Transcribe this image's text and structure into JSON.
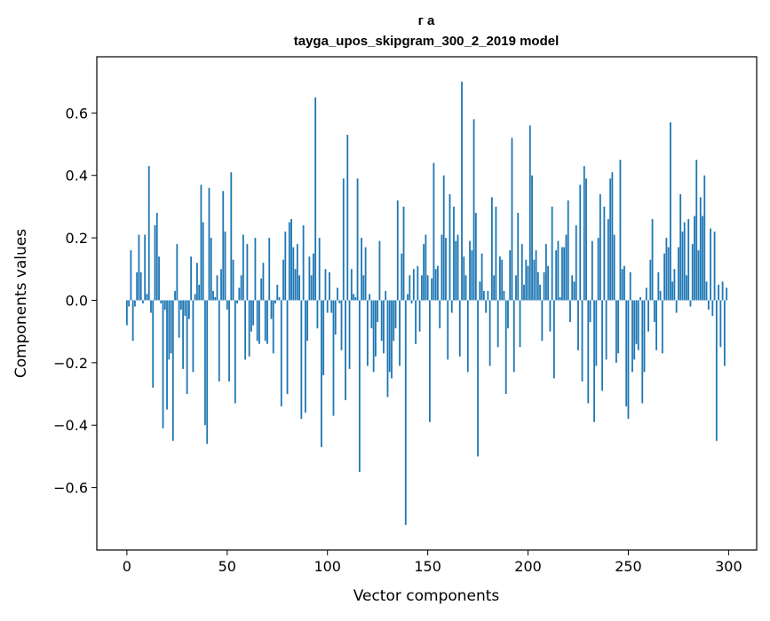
{
  "chart_data": {
    "type": "bar",
    "title_lines": [
      "г а",
      "tayga_upos_skipgram_300_2_2019 model"
    ],
    "xlabel": "Vector components",
    "ylabel": "Components values",
    "xlim": [
      -15,
      314
    ],
    "ylim": [
      -0.8,
      0.78
    ],
    "xticks": [
      0,
      50,
      100,
      150,
      200,
      250,
      300
    ],
    "xtick_labels": [
      "0",
      "50",
      "100",
      "150",
      "200",
      "250",
      "300"
    ],
    "yticks": [
      -0.6,
      -0.4,
      -0.2,
      0.0,
      0.2,
      0.4,
      0.6
    ],
    "ytick_labels": [
      "−0.6",
      "−0.4",
      "−0.2",
      "0.0",
      "0.2",
      "0.4",
      "0.6"
    ],
    "bar_color": "#1f77b4",
    "values": [
      -0.08,
      -0.02,
      0.16,
      -0.13,
      -0.02,
      0.09,
      0.21,
      0.09,
      -0.01,
      0.21,
      0.02,
      0.43,
      -0.04,
      -0.28,
      0.24,
      0.28,
      0.14,
      -0.01,
      -0.41,
      -0.03,
      -0.35,
      -0.19,
      -0.17,
      -0.45,
      0.03,
      0.18,
      -0.12,
      -0.03,
      -0.22,
      -0.05,
      -0.3,
      -0.06,
      0.14,
      -0.23,
      0.02,
      0.12,
      0.05,
      0.37,
      0.25,
      -0.4,
      -0.46,
      0.36,
      0.2,
      0.03,
      0.01,
      0.08,
      -0.26,
      0.1,
      0.35,
      0.22,
      -0.03,
      -0.26,
      0.41,
      0.13,
      -0.33,
      -0.01,
      0.04,
      0.08,
      0.21,
      -0.19,
      0.18,
      -0.18,
      -0.1,
      -0.08,
      0.2,
      -0.13,
      -0.14,
      0.07,
      0.12,
      -0.13,
      -0.14,
      0.2,
      -0.06,
      -0.17,
      -0.01,
      0.05,
      0.01,
      -0.34,
      0.13,
      0.22,
      -0.3,
      0.25,
      0.26,
      0.17,
      0.1,
      0.18,
      0.08,
      -0.38,
      0.24,
      -0.36,
      -0.13,
      0.14,
      0.08,
      0.15,
      0.65,
      -0.09,
      0.2,
      -0.47,
      -0.24,
      0.1,
      -0.04,
      0.09,
      -0.04,
      -0.37,
      -0.11,
      0.04,
      -0.01,
      -0.16,
      0.39,
      -0.32,
      0.53,
      -0.22,
      0.1,
      0.02,
      0.01,
      0.39,
      -0.55,
      0.2,
      0.08,
      0.17,
      -0.21,
      0.02,
      -0.09,
      -0.23,
      -0.18,
      -0.07,
      0.19,
      -0.13,
      -0.17,
      0.03,
      -0.31,
      -0.23,
      -0.25,
      -0.13,
      -0.09,
      0.32,
      -0.21,
      0.15,
      0.3,
      -0.72,
      0.02,
      0.08,
      -0.01,
      0.1,
      -0.14,
      0.11,
      -0.1,
      0.08,
      0.18,
      0.21,
      0.08,
      -0.39,
      0.07,
      0.44,
      0.1,
      0.11,
      -0.09,
      0.21,
      0.4,
      0.2,
      -0.19,
      0.34,
      -0.04,
      0.3,
      0.19,
      0.21,
      -0.18,
      0.7,
      0.14,
      0.08,
      -0.23,
      0.19,
      0.16,
      0.58,
      0.28,
      -0.5,
      0.06,
      0.15,
      0.03,
      -0.04,
      0.03,
      -0.21,
      0.33,
      0.08,
      0.3,
      -0.15,
      0.14,
      0.13,
      0.03,
      -0.3,
      -0.09,
      0.16,
      0.52,
      -0.23,
      0.08,
      0.28,
      -0.15,
      0.18,
      0.05,
      0.13,
      0.11,
      0.56,
      0.4,
      0.13,
      0.16,
      0.09,
      0.05,
      -0.13,
      0.09,
      0.18,
      0.11,
      -0.1,
      0.3,
      -0.25,
      0.16,
      0.19,
      0.01,
      0.17,
      0.17,
      0.21,
      0.32,
      -0.07,
      0.08,
      0.06,
      0.24,
      -0.16,
      0.37,
      -0.26,
      0.43,
      0.39,
      -0.33,
      -0.07,
      0.19,
      -0.39,
      -0.21,
      0.2,
      0.34,
      -0.29,
      0.3,
      -0.19,
      0.26,
      0.39,
      0.41,
      0.21,
      -0.2,
      -0.17,
      0.45,
      0.1,
      0.11,
      -0.34,
      -0.38,
      0.09,
      -0.23,
      -0.19,
      -0.14,
      -0.16,
      0.01,
      -0.33,
      -0.23,
      0.04,
      -0.1,
      0.13,
      0.26,
      -0.07,
      -0.16,
      0.09,
      0.03,
      -0.17,
      0.15,
      0.2,
      0.17,
      0.57,
      0.06,
      0.1,
      -0.04,
      0.17,
      0.34,
      0.22,
      0.25,
      0.08,
      0.26,
      -0.02,
      0.18,
      0.27,
      0.45,
      0.16,
      0.33,
      0.27,
      0.4,
      0.06,
      -0.03,
      0.23,
      -0.05,
      0.22,
      -0.45,
      0.05,
      -0.15,
      0.06,
      -0.21,
      0.04
    ]
  }
}
